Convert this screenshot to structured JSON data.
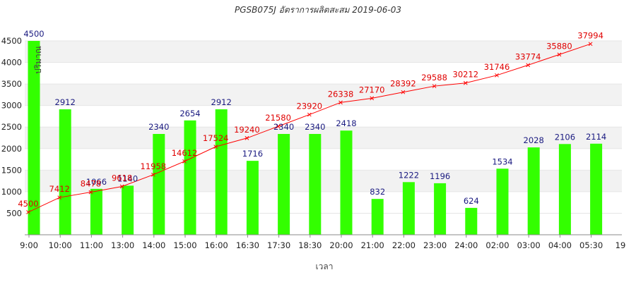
{
  "chart_data": {
    "type": "bar",
    "title": "PGSB075J อัตราการผลิตสะสม 2019-06-03",
    "xlabel": "เวลา",
    "ylabel": "ปริมาณ",
    "ylim": [
      0,
      4600
    ],
    "yticks": [
      500,
      1000,
      1500,
      2000,
      2500,
      3000,
      3500,
      4000,
      4500
    ],
    "grid": true,
    "colors": {
      "bar": "#33ff00",
      "line": "#ff0000",
      "bar_label": "#1a1a80",
      "line_label": "#e00000",
      "band": "#f2f2f2"
    },
    "categories": [
      "9:00",
      "10:00",
      "11:00",
      "13:00",
      "14:00",
      "15:00",
      "16:00",
      "16:30",
      "17:30",
      "18:30",
      "20:00",
      "21:00",
      "22:00",
      "23:00",
      "24:00",
      "02:00",
      "03:00",
      "04:00",
      "05:30"
    ],
    "extra_xtick": "19",
    "series": [
      {
        "type": "bar",
        "values": [
          4500,
          2912,
          1066,
          1140,
          2340,
          2654,
          2912,
          1716,
          2340,
          2340,
          2418,
          832,
          1222,
          1196,
          624,
          1534,
          2028,
          2106,
          2114
        ]
      },
      {
        "type": "line",
        "values": [
          4500,
          7412,
          8478,
          9618,
          11958,
          14612,
          17524,
          19240,
          21580,
          23920,
          26338,
          27170,
          28392,
          29588,
          30212,
          31746,
          33774,
          35880,
          37994
        ]
      }
    ]
  }
}
